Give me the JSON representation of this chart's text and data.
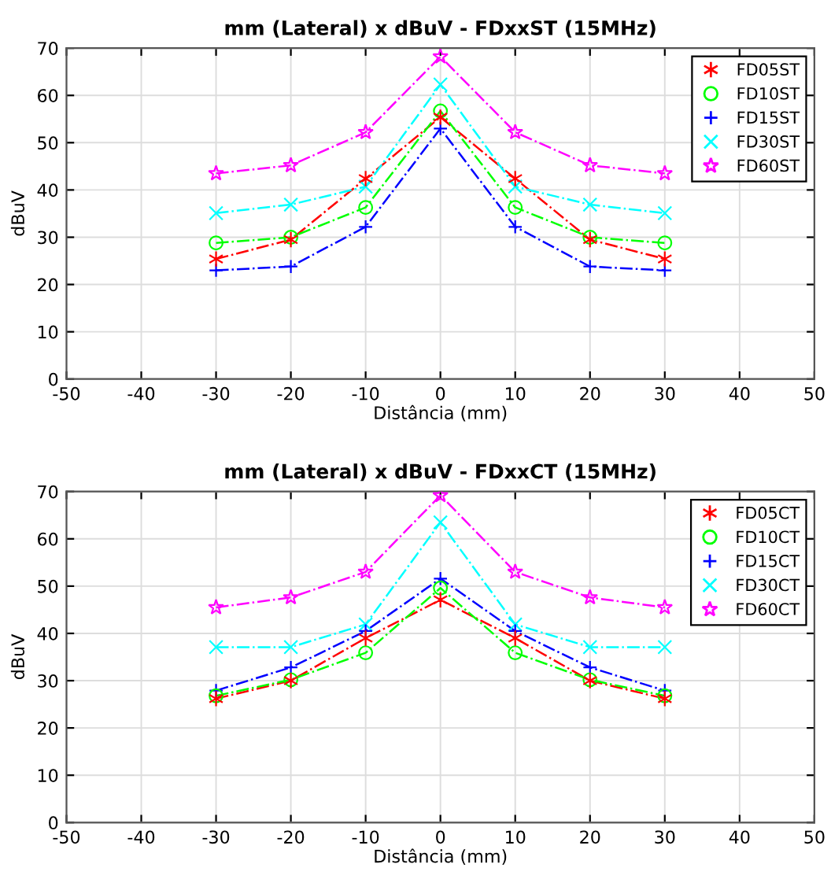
{
  "chart_data": [
    {
      "type": "line",
      "title": "mm (Lateral) x dBuV - FDxxST (15MHz)",
      "xlabel": "Distância (mm)",
      "ylabel": "dBuV",
      "xlim": [
        -50,
        50
      ],
      "ylim": [
        0,
        70
      ],
      "xticks": [
        -50,
        -40,
        -30,
        -20,
        -10,
        0,
        10,
        20,
        30,
        40,
        50
      ],
      "yticks": [
        0,
        10,
        20,
        30,
        40,
        50,
        60,
        70
      ],
      "grid": true,
      "legend": "top right",
      "line_style": "dashdot",
      "x": [
        -30,
        -20,
        -10,
        0,
        10,
        20,
        30
      ],
      "series": [
        {
          "name": "FD05ST",
          "color": "#ff0000",
          "marker": "cross",
          "values": [
            25.4,
            29.5,
            42.4,
            55.4,
            42.4,
            29.5,
            25.4
          ]
        },
        {
          "name": "FD10ST",
          "color": "#00ff00",
          "marker": "circle",
          "values": [
            28.8,
            30,
            36.3,
            56.7,
            36.3,
            30,
            28.8
          ]
        },
        {
          "name": "FD15ST",
          "color": "#0000ff",
          "marker": "plus",
          "values": [
            23,
            23.8,
            32.2,
            53,
            32.2,
            23.8,
            23
          ]
        },
        {
          "name": "FD30ST",
          "color": "#00ffff",
          "marker": "cross",
          "values": [
            35.1,
            36.9,
            40.7,
            62.3,
            40.7,
            36.9,
            35.1
          ]
        },
        {
          "name": "FD60ST",
          "color": "#ff00ff",
          "marker": "star",
          "values": [
            43.5,
            45.2,
            52.2,
            68.2,
            52.2,
            45.2,
            43.5
          ]
        }
      ]
    },
    {
      "type": "line",
      "title": "mm (Lateral) x dBuV - FDxxCT (15MHz)",
      "xlabel": "Distância (mm)",
      "ylabel": "dBuV",
      "xlim": [
        -50,
        50
      ],
      "ylim": [
        0,
        70
      ],
      "xticks": [
        -50,
        -40,
        -30,
        -20,
        -10,
        0,
        10,
        20,
        30,
        40,
        50
      ],
      "yticks": [
        0,
        10,
        20,
        30,
        40,
        50,
        60,
        70
      ],
      "grid": true,
      "legend": "top right",
      "line_style": "dashdot",
      "x": [
        -30,
        -20,
        -10,
        0,
        10,
        20,
        30
      ],
      "series": [
        {
          "name": "FD05CT",
          "color": "#ff0000",
          "marker": "cross",
          "values": [
            26.2,
            30,
            39,
            47.1,
            39,
            30,
            26.2
          ]
        },
        {
          "name": "FD10CT",
          "color": "#00ff00",
          "marker": "circle",
          "values": [
            26.8,
            30.2,
            35.9,
            49.6,
            35.9,
            30.2,
            26.8
          ]
        },
        {
          "name": "FD15CT",
          "color": "#0000ff",
          "marker": "plus",
          "values": [
            27.9,
            32.8,
            40.5,
            51.6,
            40.5,
            32.8,
            27.9
          ]
        },
        {
          "name": "FD30CT",
          "color": "#00ffff",
          "marker": "cross",
          "values": [
            37.1,
            37.1,
            41.9,
            63.5,
            41.9,
            37.1,
            37.1
          ]
        },
        {
          "name": "FD60CT",
          "color": "#ff00ff",
          "marker": "star",
          "values": [
            45.5,
            47.6,
            53,
            69.2,
            53,
            47.6,
            45.5
          ]
        }
      ]
    }
  ]
}
